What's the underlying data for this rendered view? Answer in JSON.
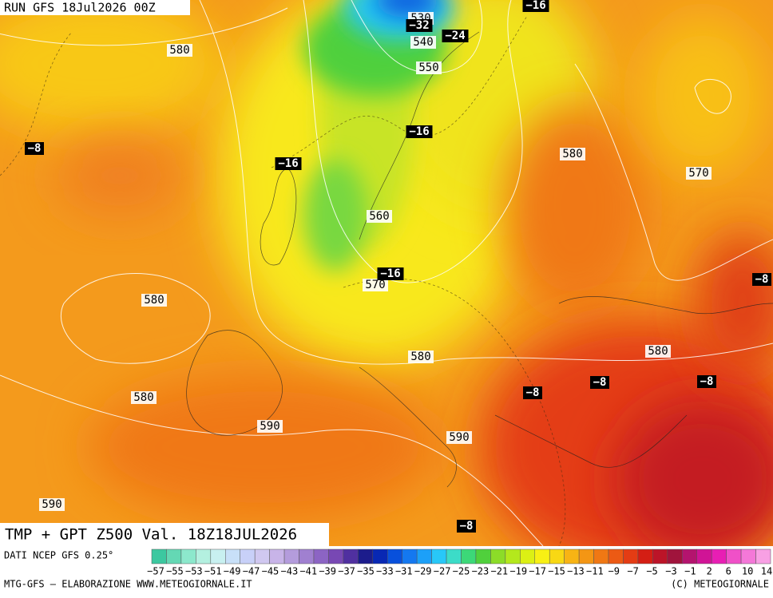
{
  "header": {
    "run": "RUN GFS 18Jul2026 00Z"
  },
  "map": {
    "contour_labels": [
      "580",
      "530",
      "540",
      "550",
      "580",
      "570",
      "560",
      "570",
      "580",
      "580",
      "580",
      "580",
      "590",
      "590",
      "590"
    ],
    "temperature_labels": [
      "-16",
      "-32",
      "-24",
      "-8",
      "-16",
      "-16",
      "-16",
      "-8",
      "-8",
      "-8",
      "-8",
      "-8"
    ]
  },
  "footer": {
    "title": "TMP + GPT Z500 Val. 18Z18JUL2026",
    "source": "DATI NCEP GFS 0.25°",
    "credit_left": "MTG-GFS — ELABORAZIONE WWW.METEOGIORNALE.IT",
    "credit_right": "(C) METEOGIORNALE"
  },
  "legend": {
    "colors": [
      "#3cc8a0",
      "#64d8b4",
      "#8ce8cc",
      "#b4f0e0",
      "#c8f0f0",
      "#c8e0f8",
      "#c8d0f8",
      "#d0c8f0",
      "#c8b4e8",
      "#b49cdc",
      "#a080d0",
      "#8c64c4",
      "#7848b4",
      "#5030a0",
      "#1c1c8c",
      "#0828b4",
      "#0850dc",
      "#1478f0",
      "#1ca0f8",
      "#28c8f8",
      "#3cdcc8",
      "#3cd878",
      "#50d03c",
      "#8cdc28",
      "#b4e81c",
      "#dcf014",
      "#f8f014",
      "#f8d814",
      "#f8b414",
      "#f49614",
      "#f07814",
      "#ec5a14",
      "#e43c14",
      "#d41e14",
      "#bc1428",
      "#a0143c",
      "#b4146e",
      "#d01496",
      "#e81eb4",
      "#f050c8",
      "#f478d8",
      "#f8a0e4"
    ],
    "labels": [
      "-57",
      "-55",
      "-53",
      "-51",
      "-49",
      "-47",
      "-45",
      "-43",
      "-41",
      "-39",
      "-37",
      "-35",
      "-33",
      "-31",
      "-29",
      "-27",
      "-25",
      "-23",
      "-21",
      "-19",
      "-17",
      "-15",
      "-13",
      "-11",
      "-9",
      "-7",
      "-5",
      "-3",
      "-1",
      "2",
      "6",
      "10",
      "14"
    ]
  }
}
